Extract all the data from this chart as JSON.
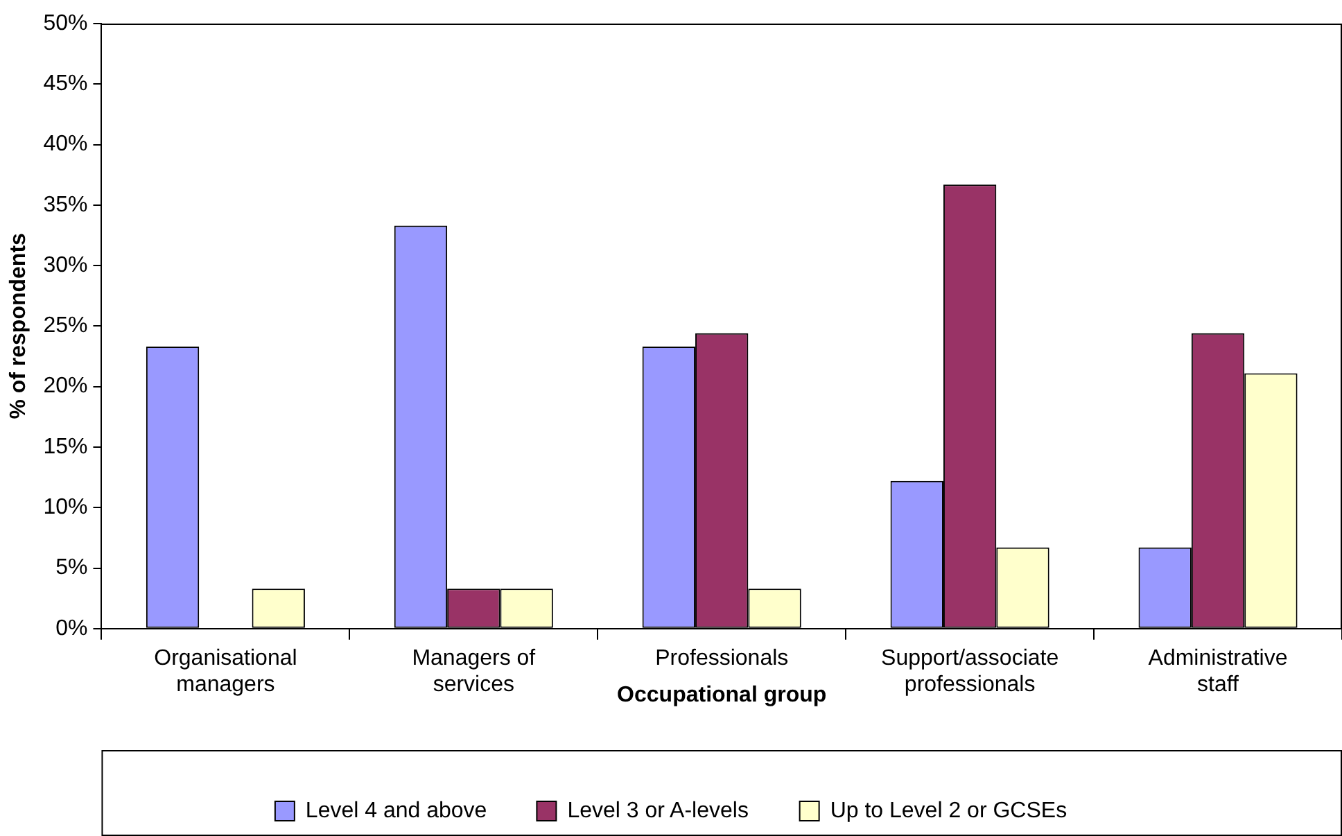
{
  "chart_data": {
    "type": "bar",
    "xlabel": "Occupational group",
    "ylabel": "% of respondents",
    "categories": [
      "Organisational managers",
      "Managers of services",
      "Professionals",
      "Support/associate professionals",
      "Administrative staff"
    ],
    "series": [
      {
        "name": "Level 4 and above",
        "color": "#9999ff",
        "values": [
          23.3,
          33.3,
          23.3,
          12.2,
          6.7
        ]
      },
      {
        "name": "Level 3 or A-levels",
        "color": "#993366",
        "values": [
          0,
          3.3,
          24.4,
          36.7,
          24.4
        ]
      },
      {
        "name": "Up to Level 2 or GCSEs",
        "color": "#ffffcc",
        "values": [
          3.3,
          3.3,
          3.3,
          6.7,
          21.1
        ]
      }
    ],
    "ylim": [
      0,
      50
    ],
    "yticks": [
      {
        "value": 0,
        "label": "0%"
      },
      {
        "value": 5,
        "label": "5%"
      },
      {
        "value": 10,
        "label": "10%"
      },
      {
        "value": 15,
        "label": "15%"
      },
      {
        "value": 20,
        "label": "20%"
      },
      {
        "value": 25,
        "label": "25%"
      },
      {
        "value": 30,
        "label": "30%"
      },
      {
        "value": 35,
        "label": "35%"
      },
      {
        "value": 40,
        "label": "40%"
      },
      {
        "value": 45,
        "label": "45%"
      },
      {
        "value": 50,
        "label": "50%"
      }
    ],
    "grid": false,
    "legend": "bottom"
  }
}
